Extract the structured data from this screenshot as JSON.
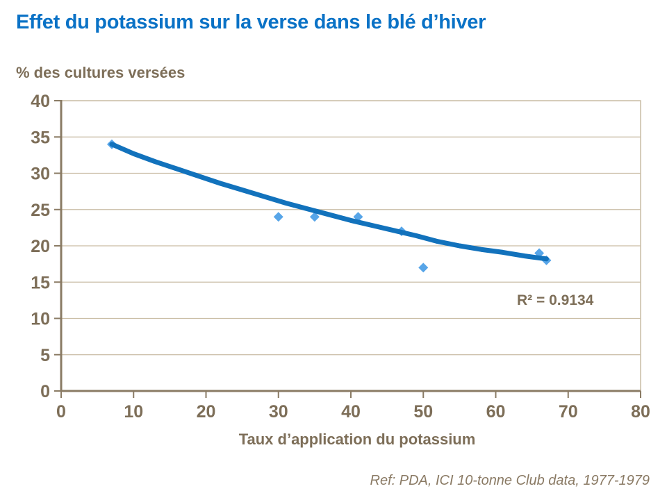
{
  "slide": {
    "title": "Effet du potassium sur la verse dans le blé d’hiver",
    "y_axis_title": "% des cultures versées",
    "x_axis_title": "Taux d’application du potassium",
    "annotation": "R² = 0.9134",
    "reference": "Ref: PDA, ICI 10-tonne Club data, 1977-1979"
  },
  "chart_data": {
    "type": "scatter",
    "title": "Effet du potassium sur la verse dans le blé d’hiver",
    "xlabel": "Taux d’application du potassium",
    "ylabel": "% des cultures versées",
    "xlim": [
      0,
      80
    ],
    "ylim": [
      0,
      40
    ],
    "xticks": [
      0,
      10,
      20,
      30,
      40,
      50,
      60,
      70,
      80
    ],
    "yticks": [
      0,
      5,
      10,
      15,
      20,
      25,
      30,
      35,
      40
    ],
    "grid": "horizontal",
    "legend": "none",
    "points": [
      [
        7,
        34
      ],
      [
        30,
        24
      ],
      [
        35,
        24
      ],
      [
        41,
        24
      ],
      [
        47,
        22
      ],
      [
        50,
        17
      ],
      [
        66,
        19
      ],
      [
        67,
        18
      ]
    ],
    "trendline": {
      "label": "R² = 0.9134",
      "r_squared": 0.9134,
      "samples": [
        [
          7,
          34.0
        ],
        [
          10,
          32.7
        ],
        [
          13,
          31.6
        ],
        [
          16,
          30.6
        ],
        [
          19,
          29.6
        ],
        [
          22,
          28.6
        ],
        [
          25,
          27.7
        ],
        [
          28,
          26.8
        ],
        [
          31,
          25.9
        ],
        [
          34,
          25.1
        ],
        [
          37,
          24.3
        ],
        [
          40,
          23.5
        ],
        [
          43,
          22.8
        ],
        [
          46,
          22.1
        ],
        [
          49,
          21.4
        ],
        [
          52,
          20.6
        ],
        [
          55,
          20.0
        ],
        [
          58,
          19.5
        ],
        [
          61,
          19.1
        ],
        [
          64,
          18.6
        ],
        [
          67,
          18.2
        ]
      ]
    },
    "colors": {
      "title": "#0A72C6",
      "text": "#7D6E58",
      "axis": "#8A7B64",
      "grid": "#C9BCA4",
      "point": "#57A5E8",
      "trend": "#1272BC"
    }
  }
}
